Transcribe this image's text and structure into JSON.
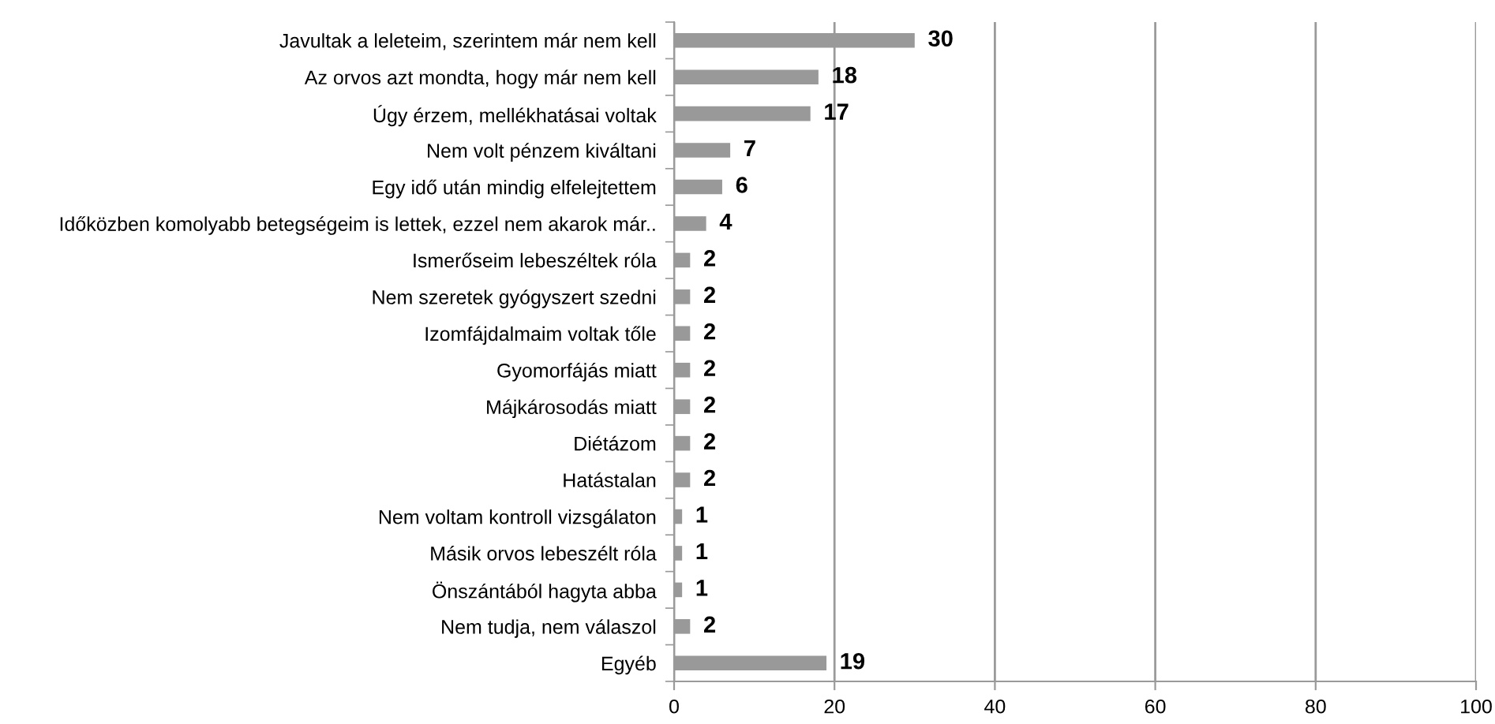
{
  "chart_data": {
    "type": "bar",
    "orientation": "horizontal",
    "categories": [
      "Javultak a leleteim, szerintem már nem kell",
      "Az orvos azt mondta, hogy már nem kell",
      "Úgy érzem, mellékhatásai voltak",
      "Nem volt pénzem kiváltani",
      "Egy idő után mindig elfelejtettem",
      "Időközben komolyabb betegségeim is lettek, ezzel nem akarok már..",
      "Ismerőseim lebeszéltek róla",
      "Nem szeretek gyógyszert szedni",
      "Izomfájdalmaim voltak tőle",
      "Gyomorfájás miatt",
      "Májkárosodás miatt",
      "Diétázom",
      "Hatástalan",
      "Nem voltam kontroll vizsgálaton",
      "Másik orvos lebeszélt róla",
      "Önszántából hagyta abba",
      "Nem tudja, nem válaszol",
      "Egyéb"
    ],
    "values": [
      30,
      18,
      17,
      7,
      6,
      4,
      2,
      2,
      2,
      2,
      2,
      2,
      2,
      1,
      1,
      1,
      2,
      19
    ],
    "color": "#999999",
    "xlim": [
      0,
      100
    ],
    "xticks": [
      0,
      20,
      40,
      60,
      80,
      100
    ],
    "grid": "x",
    "data_labels": true
  }
}
